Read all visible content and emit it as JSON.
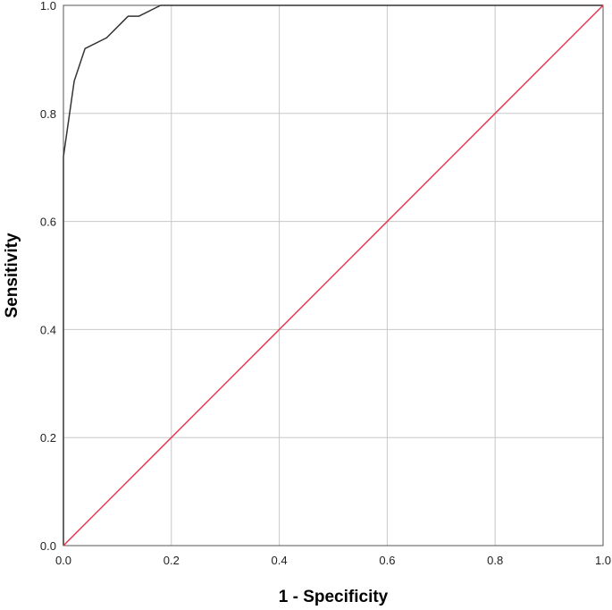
{
  "chart_data": {
    "type": "line",
    "title": "",
    "xlabel": "1 - Specificity",
    "ylabel": "Sensitivity",
    "xlim": [
      0,
      1
    ],
    "ylim": [
      0,
      1
    ],
    "grid": true,
    "x_ticks": [
      "0.0",
      "0.2",
      "0.4",
      "0.6",
      "0.8",
      "1.0"
    ],
    "y_ticks": [
      "0.0",
      "0.2",
      "0.4",
      "0.6",
      "0.8",
      "1.0"
    ],
    "series": [
      {
        "color": "#333333",
        "x": [
          0.0,
          0.0,
          0.02,
          0.04,
          0.08,
          0.12,
          0.14,
          0.18,
          0.2,
          0.4,
          0.6,
          0.8,
          1.0
        ],
        "y": [
          0.0,
          0.72,
          0.86,
          0.92,
          0.94,
          0.98,
          0.98,
          1.0,
          1.0,
          1.0,
          1.0,
          1.0,
          1.0
        ]
      },
      {
        "color": "#e8354f",
        "x": [
          0.0,
          1.0
        ],
        "y": [
          0.0,
          1.0
        ]
      }
    ]
  }
}
